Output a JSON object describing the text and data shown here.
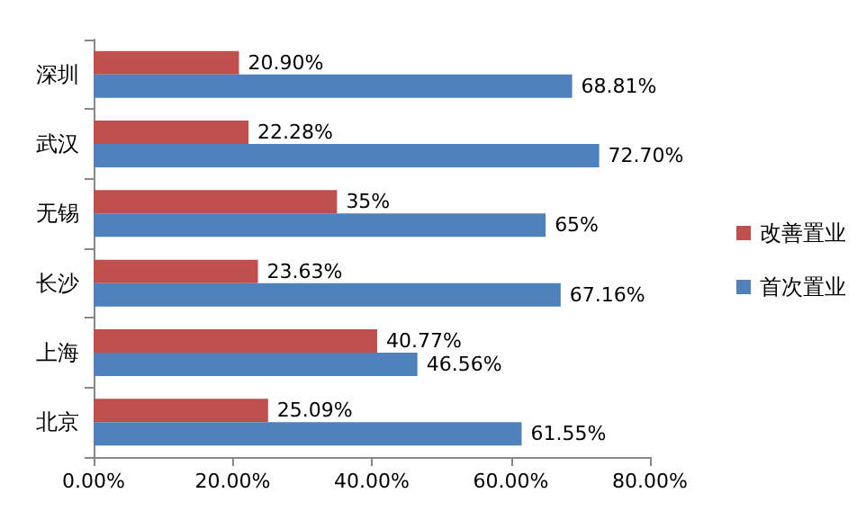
{
  "chart_data": {
    "type": "bar",
    "orientation": "horizontal",
    "categories": [
      "深圳",
      "武汉",
      "无锡",
      "长沙",
      "上海",
      "北京"
    ],
    "series": [
      {
        "name": "改善置业",
        "color": "#c0504d",
        "values": [
          20.9,
          22.28,
          35,
          23.63,
          40.77,
          25.09
        ],
        "value_labels": [
          "20.90%",
          "22.28%",
          "35%",
          "23.63%",
          "40.77%",
          "25.09%"
        ]
      },
      {
        "name": "首次置业",
        "color": "#4f81bd",
        "values": [
          68.81,
          72.7,
          65,
          67.16,
          46.56,
          61.55
        ],
        "value_labels": [
          "68.81%",
          "72.70%",
          "65%",
          "67.16%",
          "46.56%",
          "61.55%"
        ]
      }
    ],
    "xlim": [
      0,
      80
    ],
    "xticks": [
      {
        "value": 0,
        "label": "0.00%"
      },
      {
        "value": 20,
        "label": "20.00%"
      },
      {
        "value": 40,
        "label": "40.00%"
      },
      {
        "value": 60,
        "label": "60.00%"
      },
      {
        "value": 80,
        "label": "80.00%"
      }
    ],
    "grid": false,
    "legend": "right"
  }
}
